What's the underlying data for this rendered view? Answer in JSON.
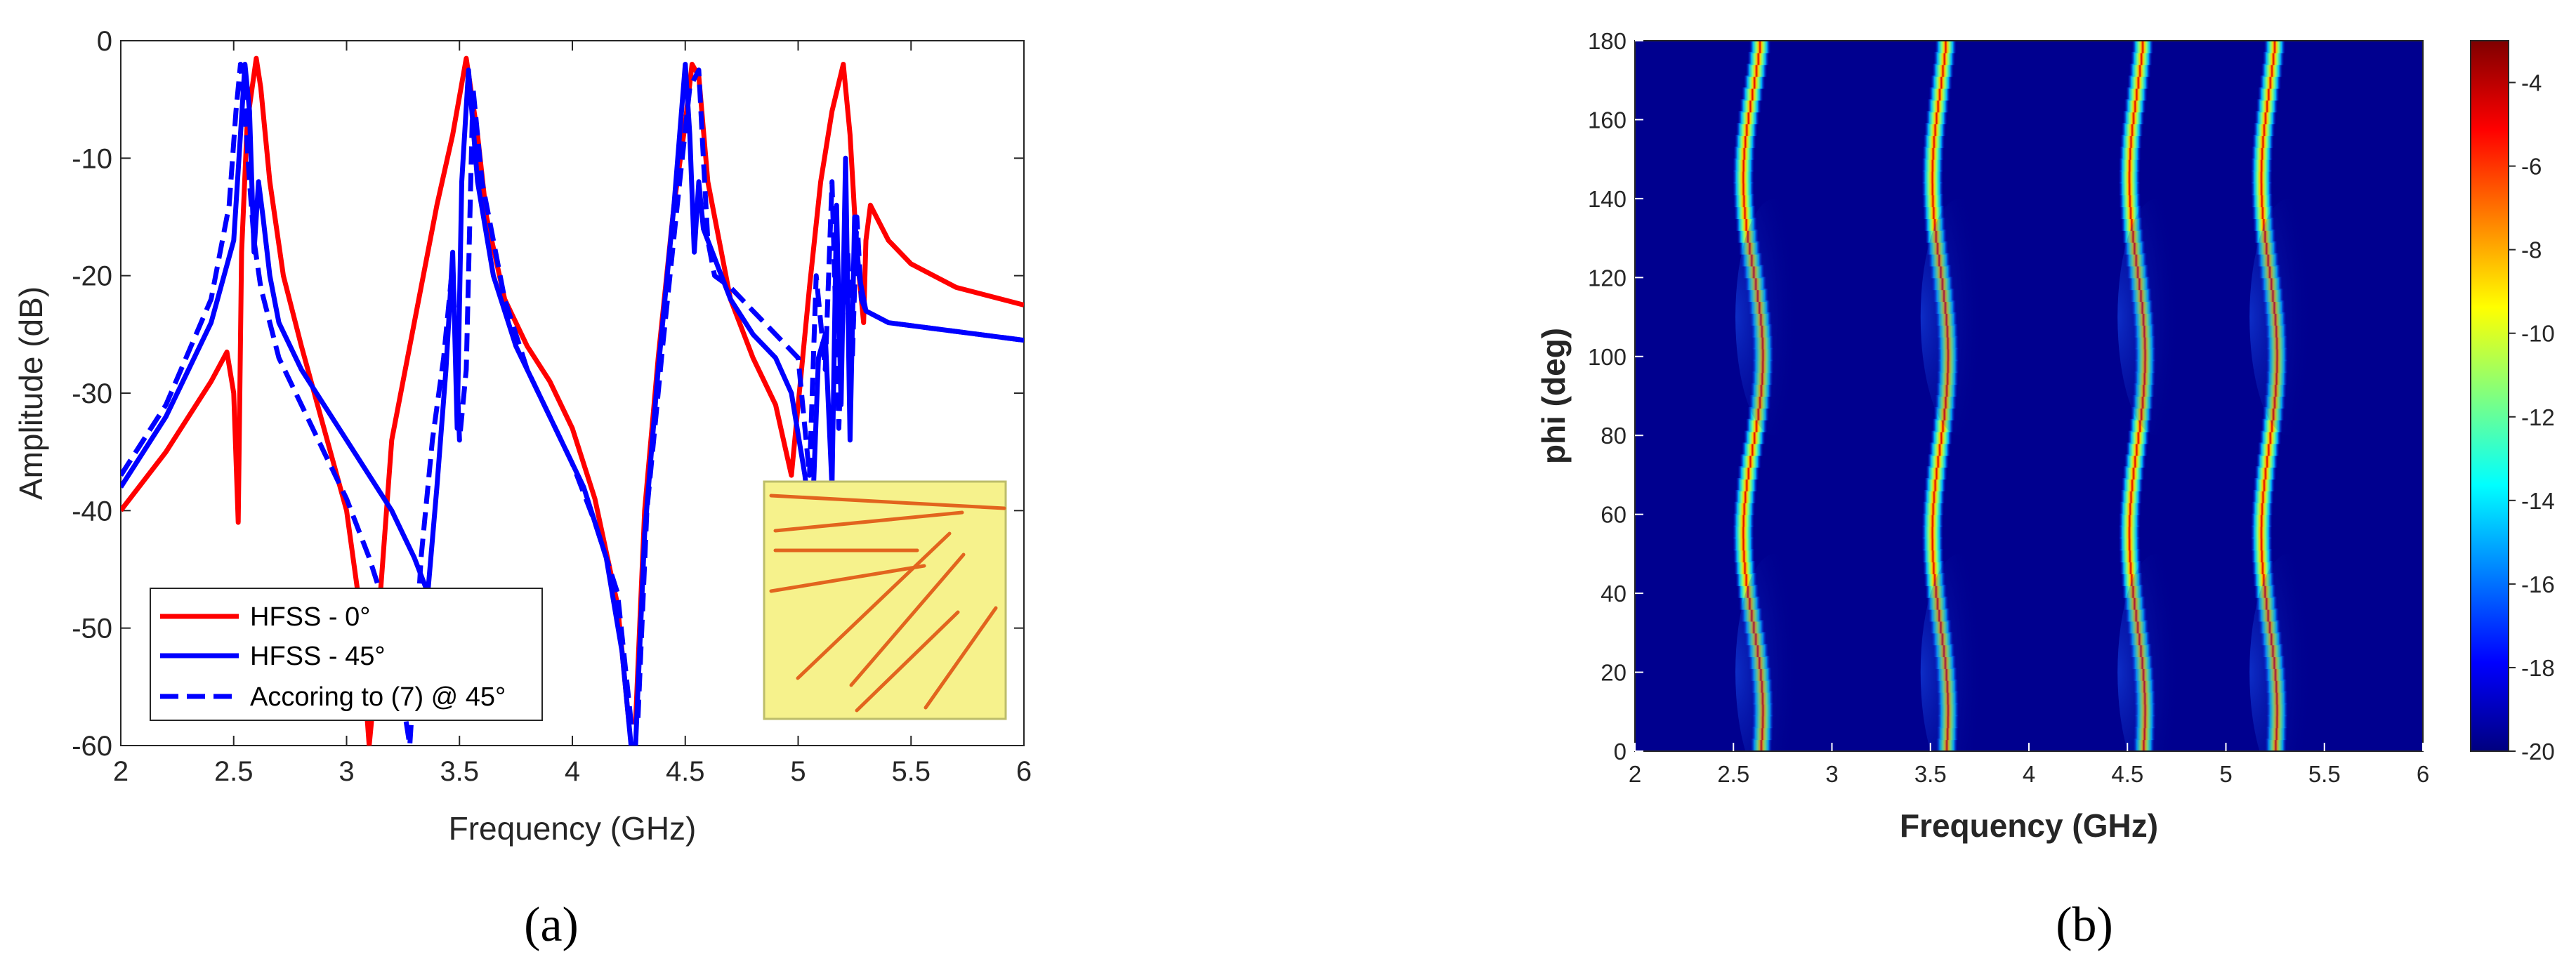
{
  "chart_data": [
    {
      "type": "line",
      "panel_label": "(a)",
      "xlabel": "Frequency (GHz)",
      "ylabel": "Amplitude (dB)",
      "xlim": [
        2,
        6
      ],
      "ylim": [
        -60,
        0
      ],
      "xticks": [
        "2",
        "2.5",
        "3",
        "3.5",
        "4",
        "4.5",
        "5",
        "5.5",
        "6"
      ],
      "yticks": [
        "0",
        "-10",
        "-20",
        "-30",
        "-40",
        "-50",
        "-60"
      ],
      "legend": [
        "HFSS - 0°",
        "HFSS - 45°",
        "Accoring to (7) @ 45°"
      ],
      "legend_position": "bottom-left",
      "inset": "yellow patch with red angled strip lines",
      "colors": {
        "hfss0": "#ff0000",
        "hfss45": "#0000ff",
        "formula45": "#0000ff",
        "inset_bg": "#f6f28c"
      },
      "series": [
        {
          "name": "HFSS - 0°",
          "style": "solid",
          "x": [
            2.0,
            2.2,
            2.4,
            2.47,
            2.5,
            2.52,
            2.535,
            2.56,
            2.6,
            2.62,
            2.66,
            2.72,
            2.8,
            2.9,
            3.0,
            3.05,
            3.1,
            3.12,
            3.15,
            3.2,
            3.3,
            3.4,
            3.47,
            3.53,
            3.58,
            3.62,
            3.7,
            3.8,
            3.9,
            4.0,
            4.1,
            4.2,
            4.25,
            4.28,
            4.32,
            4.38,
            4.45,
            4.5,
            4.53,
            4.56,
            4.6,
            4.7,
            4.8,
            4.9,
            4.97,
            5.0,
            5.05,
            5.1,
            5.15,
            5.2,
            5.23,
            5.26,
            5.29,
            5.3,
            5.32,
            5.4,
            5.5,
            5.7,
            6.0
          ],
          "y": [
            -40,
            -35,
            -29,
            -26.5,
            -30,
            -41,
            -18,
            -7,
            -1.5,
            -4,
            -12,
            -20,
            -26,
            -33,
            -40,
            -47,
            -60,
            -56,
            -47,
            -34,
            -24,
            -14,
            -8,
            -1.5,
            -8,
            -15,
            -22,
            -26,
            -29,
            -33,
            -39,
            -48,
            -58,
            -58,
            -40,
            -27,
            -14,
            -7,
            -2,
            -3,
            -12,
            -22,
            -27,
            -31,
            -37,
            -31,
            -21,
            -12,
            -6,
            -2,
            -8,
            -18,
            -24,
            -17,
            -14,
            -17,
            -19,
            -21,
            -22.5
          ]
        },
        {
          "name": "HFSS - 45°",
          "style": "solid",
          "x": [
            2.0,
            2.2,
            2.4,
            2.5,
            2.53,
            2.55,
            2.57,
            2.59,
            2.61,
            2.63,
            2.66,
            2.7,
            2.8,
            2.9,
            3.0,
            3.1,
            3.2,
            3.3,
            3.36,
            3.4,
            3.44,
            3.47,
            3.49,
            3.51,
            3.54,
            3.58,
            3.65,
            3.75,
            3.85,
            3.95,
            4.05,
            4.15,
            4.22,
            4.26,
            4.28,
            4.32,
            4.38,
            4.45,
            4.5,
            4.52,
            4.54,
            4.56,
            4.58,
            4.6,
            4.7,
            4.8,
            4.9,
            4.97,
            5.03,
            5.06,
            5.09,
            5.12,
            5.15,
            5.17,
            5.19,
            5.21,
            5.23,
            5.25,
            5.27,
            5.3,
            5.4,
            5.6,
            5.8,
            6.0
          ],
          "y": [
            -38,
            -32,
            -24,
            -17,
            -8,
            -2,
            -6,
            -18,
            -12,
            -15,
            -20,
            -24,
            -28,
            -31,
            -34,
            -37,
            -40,
            -44,
            -47,
            -38,
            -28,
            -18,
            -33,
            -12,
            -2.5,
            -12,
            -20,
            -26,
            -30,
            -34,
            -38,
            -44,
            -52,
            -60,
            -60,
            -42,
            -28,
            -14,
            -2,
            -8,
            -18,
            -12,
            -16,
            -17,
            -22,
            -25,
            -27,
            -30,
            -37,
            -42,
            -27,
            -25,
            -38,
            -14,
            -31,
            -10,
            -34,
            -15,
            -20,
            -23,
            -24,
            -24.5,
            -25,
            -25.5
          ]
        },
        {
          "name": "Accoring to (7) @ 45°",
          "style": "dashed",
          "x": [
            2.0,
            2.2,
            2.4,
            2.48,
            2.51,
            2.53,
            2.55,
            2.57,
            2.59,
            2.62,
            2.66,
            2.7,
            2.8,
            2.9,
            3.0,
            3.1,
            3.2,
            3.28,
            3.3,
            3.33,
            3.38,
            3.43,
            3.47,
            3.5,
            3.53,
            3.56,
            3.6,
            3.7,
            3.8,
            3.9,
            4.0,
            4.1,
            4.2,
            4.26,
            4.29,
            4.33,
            4.4,
            4.47,
            4.52,
            4.56,
            4.58,
            4.6,
            4.63,
            4.7,
            4.8,
            4.9,
            5.0,
            5.05,
            5.08,
            5.12,
            5.15,
            5.18,
            5.2,
            5.22,
            5.24,
            5.26,
            5.28,
            5.3,
            5.4,
            5.6,
            5.8,
            6.0
          ],
          "y": [
            -37,
            -31,
            -22,
            -14,
            -6,
            -2,
            -6,
            -12,
            -17,
            -21,
            -24,
            -27,
            -31,
            -35,
            -39,
            -44,
            -50,
            -60,
            -54,
            -44,
            -34,
            -27,
            -19,
            -34,
            -28,
            -4,
            -12,
            -22,
            -28,
            -32,
            -36,
            -41,
            -47,
            -58,
            -58,
            -40,
            -26,
            -13,
            -4,
            -2.5,
            -10,
            -17,
            -20,
            -21,
            -23,
            -25,
            -27,
            -37,
            -20,
            -28,
            -12,
            -33,
            -22,
            -18,
            -27,
            -15,
            -22,
            -23,
            -24,
            -24.5,
            -25,
            -25.5
          ]
        }
      ]
    },
    {
      "type": "heatmap",
      "panel_label": "(b)",
      "xlabel": "Frequency (GHz)",
      "ylabel": "phi (deg)",
      "xlim": [
        2,
        6
      ],
      "ylim": [
        0,
        180
      ],
      "xticks": [
        "2",
        "2.5",
        "3",
        "3.5",
        "4",
        "4.5",
        "5",
        "5.5",
        "6"
      ],
      "yticks": [
        "0",
        "20",
        "40",
        "60",
        "80",
        "100",
        "120",
        "140",
        "160",
        "180"
      ],
      "colorbar": {
        "min": -20,
        "max": -3,
        "ticks": [
          "-4",
          "-6",
          "-8",
          "-10",
          "-12",
          "-14",
          "-16",
          "-18",
          "-20"
        ],
        "colormap": "jet"
      },
      "resonance_bands": [
        {
          "center_ghz": 2.6,
          "wobble_ghz": 0.05,
          "period_deg": 90
        },
        {
          "center_ghz": 3.55,
          "wobble_ghz": 0.04,
          "period_deg": 90
        },
        {
          "center_ghz": 4.55,
          "wobble_ghz": 0.04,
          "period_deg": 90
        },
        {
          "center_ghz": 5.22,
          "wobble_ghz": 0.04,
          "period_deg": 90
        }
      ],
      "background_db": -20
    }
  ]
}
